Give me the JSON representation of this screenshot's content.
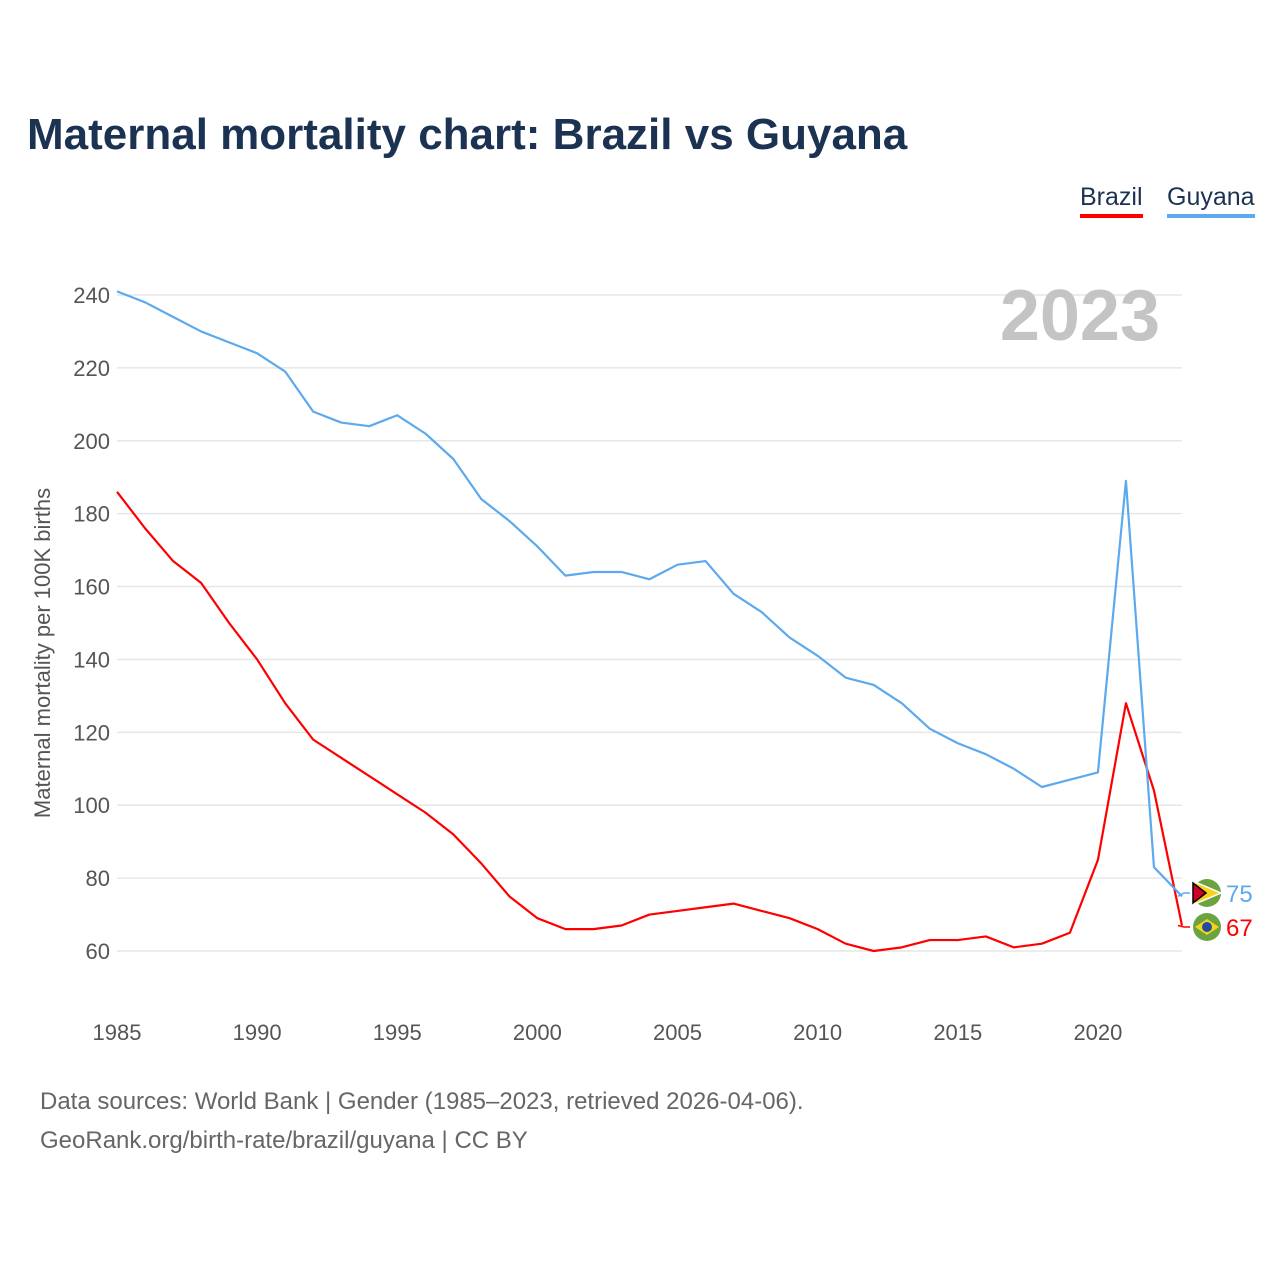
{
  "title": "Maternal mortality chart: Brazil vs Guyana",
  "footer": {
    "line1": "Data sources: World Bank | Gender (1985–2023, retrieved 2026-04-06).",
    "line2": "GeoRank.org/birth-rate/brazil/guyana | CC BY"
  },
  "chart_data": {
    "type": "line",
    "title": "Maternal mortality chart: Brazil vs Guyana",
    "xlabel": "",
    "ylabel": "Maternal mortality per 100K births",
    "year_label": "2023",
    "xlim": [
      1985,
      2023
    ],
    "ylim": [
      60,
      240
    ],
    "x_ticks": [
      1985,
      1990,
      1995,
      2000,
      2005,
      2010,
      2015,
      2020
    ],
    "y_ticks": [
      60,
      80,
      100,
      120,
      140,
      160,
      180,
      200,
      220,
      240
    ],
    "grid": true,
    "legend_placement": "top-right",
    "x": [
      1985,
      1986,
      1987,
      1988,
      1989,
      1990,
      1991,
      1992,
      1993,
      1994,
      1995,
      1996,
      1997,
      1998,
      1999,
      2000,
      2001,
      2002,
      2003,
      2004,
      2005,
      2006,
      2007,
      2008,
      2009,
      2010,
      2011,
      2012,
      2013,
      2014,
      2015,
      2016,
      2017,
      2018,
      2019,
      2020,
      2021,
      2022,
      2023
    ],
    "series": [
      {
        "name": "Brazil",
        "color": "#ff0000",
        "end_label": "67",
        "values": [
          186,
          176,
          167,
          161,
          150,
          140,
          128,
          118,
          113,
          108,
          103,
          98,
          92,
          84,
          75,
          69,
          66,
          66,
          67,
          70,
          71,
          72,
          73,
          71,
          69,
          66,
          62,
          60,
          61,
          63,
          63,
          64,
          61,
          62,
          65,
          85,
          128,
          104,
          67
        ]
      },
      {
        "name": "Guyana",
        "color": "#5da9ee",
        "end_label": "75",
        "values": [
          241,
          238,
          234,
          230,
          227,
          224,
          219,
          208,
          205,
          204,
          207,
          202,
          195,
          184,
          178,
          171,
          163,
          164,
          164,
          162,
          166,
          167,
          158,
          153,
          146,
          141,
          135,
          133,
          128,
          121,
          117,
          114,
          110,
          105,
          107,
          109,
          189,
          83,
          75
        ]
      }
    ]
  }
}
